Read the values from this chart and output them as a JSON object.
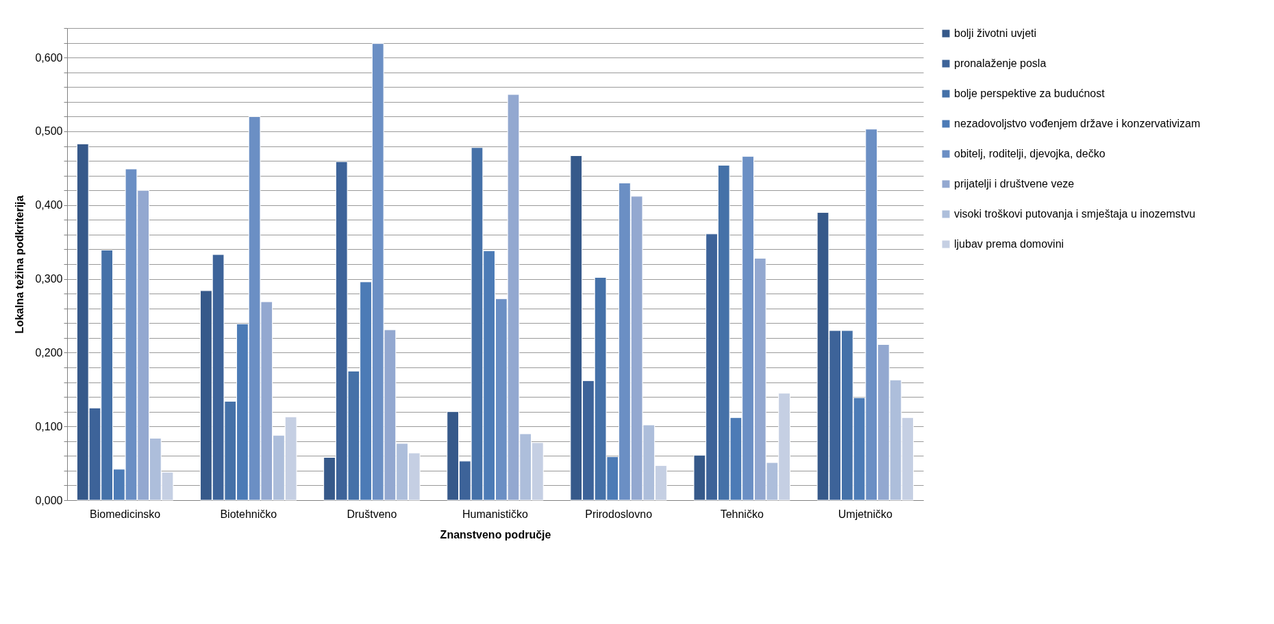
{
  "chart_data": {
    "type": "bar",
    "xlabel": "Znanstveno područje",
    "ylabel": "Lokalna težina podkriterija",
    "categories": [
      "Biomedicinsko",
      "Biotehničko",
      "Društveno",
      "Humanističko",
      "Prirodoslovno",
      "Tehničko",
      "Umjetničko"
    ],
    "series": [
      {
        "name": "bolji životni uvjeti",
        "color": "#36598a",
        "values": [
          0.483,
          0.284,
          0.058,
          0.12,
          0.467,
          0.061,
          0.39
        ]
      },
      {
        "name": "pronalaženje posla",
        "color": "#3d6399",
        "values": [
          0.125,
          0.333,
          0.459,
          0.053,
          0.162,
          0.361,
          0.23
        ]
      },
      {
        "name": "bolje perspektive za budućnost",
        "color": "#4571a8",
        "values": [
          0.339,
          0.134,
          0.175,
          0.478,
          0.302,
          0.454,
          0.23
        ]
      },
      {
        "name": "nezadovoljstvo vođenjem države i konzervativizam",
        "color": "#4c7bb6",
        "values": [
          0.042,
          0.239,
          0.296,
          0.338,
          0.059,
          0.112,
          0.139
        ]
      },
      {
        "name": "obitelj, roditelji, djevojka, dečko",
        "color": "#6b8fc4",
        "values": [
          0.449,
          0.52,
          0.619,
          0.273,
          0.43,
          0.466,
          0.503
        ]
      },
      {
        "name": "prijatelji i društvene veze",
        "color": "#93a8d0",
        "values": [
          0.42,
          0.269,
          0.231,
          0.55,
          0.412,
          0.328,
          0.211
        ]
      },
      {
        "name": "visoki troškovi putovanja i smještaja u inozemstvu",
        "color": "#adbedb",
        "values": [
          0.084,
          0.088,
          0.077,
          0.09,
          0.102,
          0.051,
          0.163
        ]
      },
      {
        "name": "ljubav prema domovini",
        "color": "#c5cfe3",
        "values": [
          0.038,
          0.113,
          0.064,
          0.078,
          0.047,
          0.145,
          0.112
        ]
      }
    ],
    "ylim": [
      0,
      0.64
    ],
    "yticks": [
      {
        "value": 0,
        "label": "0,000"
      },
      {
        "value": 0.02,
        "label": null
      },
      {
        "value": 0.04,
        "label": null
      },
      {
        "value": 0.06,
        "label": null
      },
      {
        "value": 0.08,
        "label": null
      },
      {
        "value": 0.1,
        "label": "0,100"
      },
      {
        "value": 0.12,
        "label": null
      },
      {
        "value": 0.14,
        "label": null
      },
      {
        "value": 0.16,
        "label": null
      },
      {
        "value": 0.18,
        "label": null
      },
      {
        "value": 0.2,
        "label": "0,200"
      },
      {
        "value": 0.22,
        "label": null
      },
      {
        "value": 0.24,
        "label": null
      },
      {
        "value": 0.26,
        "label": null
      },
      {
        "value": 0.28,
        "label": null
      },
      {
        "value": 0.3,
        "label": "0,300"
      },
      {
        "value": 0.32,
        "label": null
      },
      {
        "value": 0.34,
        "label": null
      },
      {
        "value": 0.36,
        "label": null
      },
      {
        "value": 0.38,
        "label": null
      },
      {
        "value": 0.4,
        "label": "0,400"
      },
      {
        "value": 0.42,
        "label": null
      },
      {
        "value": 0.44,
        "label": null
      },
      {
        "value": 0.46,
        "label": null
      },
      {
        "value": 0.48,
        "label": null
      },
      {
        "value": 0.5,
        "label": "0,500"
      },
      {
        "value": 0.52,
        "label": null
      },
      {
        "value": 0.54,
        "label": null
      },
      {
        "value": 0.56,
        "label": null
      },
      {
        "value": 0.58,
        "label": null
      },
      {
        "value": 0.6,
        "label": "0,600"
      },
      {
        "value": 0.62,
        "label": null
      },
      {
        "value": 0.64,
        "label": null
      }
    ],
    "grid": true,
    "legend": "right"
  }
}
